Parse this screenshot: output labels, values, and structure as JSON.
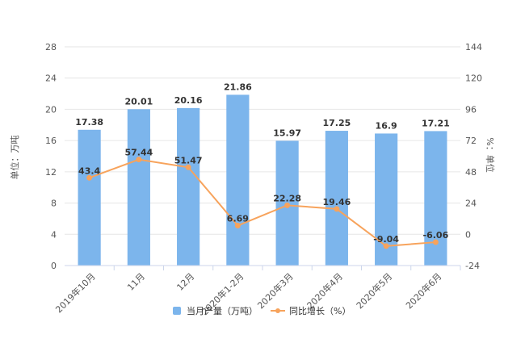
{
  "chart_data": {
    "type": "bar",
    "categories": [
      "2019年10月",
      "11月",
      "12月",
      "2020年1-2月",
      "2020年3月",
      "2020年4月",
      "2020年5月",
      "2020年6月"
    ],
    "series": [
      {
        "name": "当月产量（万吨）",
        "type": "bar",
        "axis": "left",
        "color": "#7cb5ec",
        "values": [
          17.38,
          20.01,
          20.16,
          21.86,
          15.97,
          17.25,
          16.9,
          17.21
        ]
      },
      {
        "name": "同比增长（%）",
        "type": "line",
        "axis": "right",
        "color": "#f7a35c",
        "values": [
          43.4,
          57.44,
          51.47,
          6.69,
          22.28,
          19.46,
          -9.04,
          -6.06
        ]
      }
    ],
    "left_axis": {
      "label": "单位：万吨",
      "min": 0,
      "max": 28,
      "ticks": [
        0,
        4,
        8,
        12,
        16,
        20,
        24,
        28
      ]
    },
    "right_axis": {
      "label": "%：单位",
      "min": -24,
      "max": 144,
      "ticks": [
        -24,
        0,
        24,
        48,
        72,
        96,
        120,
        144
      ]
    },
    "grid": true,
    "legend_position": "bottom-center"
  }
}
